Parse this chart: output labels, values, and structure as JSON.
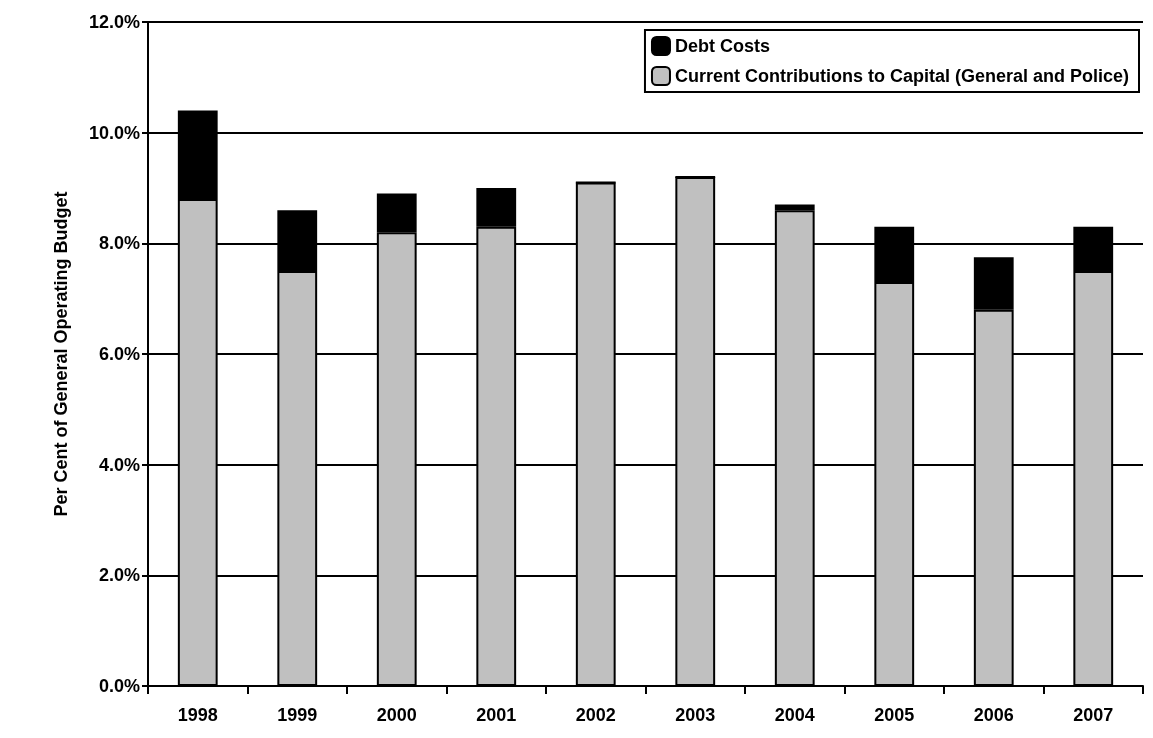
{
  "chart_data": {
    "type": "bar",
    "stacked": true,
    "ylabel": "Per Cent of General Operating Budget",
    "categories": [
      "1998",
      "1999",
      "2000",
      "2001",
      "2002",
      "2003",
      "2004",
      "2005",
      "2006",
      "2007"
    ],
    "series": [
      {
        "name": "Current Contributions to Capital (General and Police)",
        "color": "#c0c0c0",
        "values": [
          8.8,
          7.5,
          8.2,
          8.3,
          9.1,
          9.2,
          8.6,
          7.3,
          6.8,
          7.5
        ]
      },
      {
        "name": "Debt Costs",
        "color": "#000000",
        "values": [
          1.6,
          1.1,
          0.7,
          0.7,
          0,
          0,
          0.1,
          1.0,
          0.95,
          0.8
        ]
      }
    ],
    "ylim": [
      0,
      12
    ],
    "yticks": [
      {
        "value": 0,
        "label": "0.0%"
      },
      {
        "value": 2,
        "label": "2.0%"
      },
      {
        "value": 4,
        "label": "4.0%"
      },
      {
        "value": 6,
        "label": "6.0%"
      },
      {
        "value": 8,
        "label": "8.0%"
      },
      {
        "value": 10,
        "label": "10.0%"
      },
      {
        "value": 12,
        "label": "12.0%"
      }
    ],
    "grid": "y",
    "legend": "top right"
  }
}
